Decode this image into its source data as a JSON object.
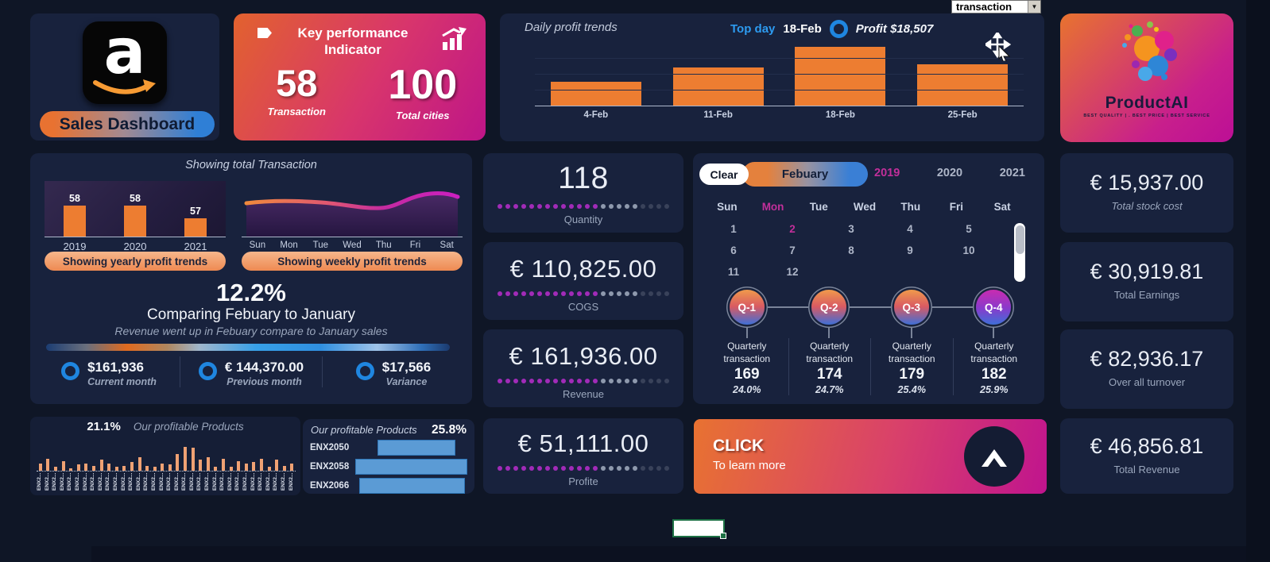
{
  "toolbar": {
    "field_dropdown_value": "transaction",
    "dropdown_arrow": "▼"
  },
  "brand_card": {
    "logo_letter": "a",
    "title": "Sales Dashboard"
  },
  "kpi_card": {
    "title": "Key performance Indicator",
    "metrics": [
      {
        "value": "58",
        "label": "Transaction"
      },
      {
        "value": "100",
        "label": "Total cities"
      }
    ]
  },
  "daily_panel": {
    "title": "Daily profit trends",
    "top_day_label": "Top day",
    "top_day_value": "18-Feb",
    "profit_note": "Profit $18,507"
  },
  "productai_card": {
    "name": "ProductAI",
    "tagline": "BEST QUALITY | . BEST PRICE | BEST SERVICE"
  },
  "transaction_panel": {
    "title": "Showing total Transaction",
    "yearly_button": "Showing yearly profit trends",
    "weekly_button": "Showing weekly profit trends",
    "growth_pct": "12.2%",
    "growth_line1": "Comparing Febuary to January",
    "growth_line2": "Revenue went up in Febuary compare to January sales",
    "stats": [
      {
        "value": "$161,936",
        "label": "Current month"
      },
      {
        "value": "€ 144,370.00",
        "label": "Previous month"
      },
      {
        "value": "$17,566",
        "label": "Variance"
      }
    ]
  },
  "metric_cards": [
    {
      "value": "118",
      "label": "Quantity"
    },
    {
      "value": "€ 110,825.00",
      "label": "COGS"
    },
    {
      "value": "€ 161,936.00",
      "label": "Revenue"
    },
    {
      "value": "€ 51,111.00",
      "label": "Profite"
    }
  ],
  "dot_meter": {
    "active": 13,
    "mid": 5,
    "faint": 4
  },
  "calendar": {
    "clear_button": "Clear",
    "month_button": "Febuary",
    "years": [
      {
        "label": "2019",
        "active": true
      },
      {
        "label": "2020",
        "active": false
      },
      {
        "label": "2021",
        "active": false
      }
    ],
    "day_headers": [
      {
        "label": "Sun",
        "active": false
      },
      {
        "label": "Mon",
        "active": true
      },
      {
        "label": "Tue",
        "active": false
      },
      {
        "label": "Wed",
        "active": false
      },
      {
        "label": "Thu",
        "active": false
      },
      {
        "label": "Fri",
        "active": false
      },
      {
        "label": "Sat",
        "active": false
      }
    ],
    "date_rows": [
      [
        "1",
        "2",
        "3",
        "4",
        "5"
      ],
      [
        "6",
        "7",
        "8",
        "9",
        "10"
      ],
      [
        "11",
        "12"
      ]
    ],
    "highlight_date": "2"
  },
  "quarters": [
    {
      "badge": "Q-1",
      "label": "Quarterly transaction",
      "value": "169",
      "pct": "24.0%",
      "alt": false
    },
    {
      "badge": "Q-2",
      "label": "Quarterly transaction",
      "value": "174",
      "pct": "24.7%",
      "alt": false
    },
    {
      "badge": "Q-3",
      "label": "Quarterly transaction",
      "value": "179",
      "pct": "25.4%",
      "alt": false
    },
    {
      "badge": "Q-4",
      "label": "Quarterly transaction",
      "value": "182",
      "pct": "25.9%",
      "alt": true
    }
  ],
  "total_cards": [
    {
      "value": "€ 15,937.00",
      "label": "Total stock cost",
      "italic": true
    },
    {
      "value": "€ 30,919.81",
      "label": "Total Earnings",
      "italic": false
    },
    {
      "value": "€ 82,936.17",
      "label": "Over all turnover",
      "italic": false
    },
    {
      "value": "€ 46,856.81",
      "label": "Total Revenue",
      "italic": false
    }
  ],
  "profitable_products_panel": {
    "pct": "21.1%",
    "title": "Our profitable Products",
    "bar_label": "ENX2..."
  },
  "top_products_panel": {
    "title": "Our profitable Products",
    "pct": "25.8%"
  },
  "cta": {
    "title": "CLICK",
    "subtitle": "To learn more"
  },
  "colors": {
    "background": "#0F1626",
    "panel": "#18223D",
    "accent_orange": "#ED7D31",
    "accent_magenta": "#C12F9A",
    "accent_blue": "#2D9BF0",
    "bar_blue": "#5B9BD5",
    "gradient_card": [
      "#E2622E",
      "#BE1588"
    ]
  },
  "chart_data": [
    {
      "id": "daily_profit_trends",
      "type": "bar",
      "title": "Daily profit trends",
      "categories": [
        "4-Feb",
        "11-Feb",
        "18-Feb",
        "25-Feb"
      ],
      "values": [
        7500,
        12000,
        18507,
        12900
      ],
      "ylim": [
        0,
        20000
      ],
      "bar_color": "#ED7D31",
      "annotation": "Top day 18-Feb, Profit $18,507",
      "grid": true,
      "legend": "none"
    },
    {
      "id": "yearly_transactions",
      "type": "bar",
      "categories": [
        "2019",
        "2020",
        "2021"
      ],
      "values": [
        58,
        58,
        57
      ],
      "data_labels": [
        "58",
        "58",
        "57"
      ],
      "ylim": [
        55.5,
        60
      ],
      "bar_color": "#ED7D31"
    },
    {
      "id": "weekly_profit_trends",
      "type": "area",
      "categories": [
        "Sun",
        "Mon",
        "Tue",
        "Wed",
        "Thu",
        "Fri",
        "Sat"
      ],
      "values": [
        60,
        61,
        60,
        57,
        55,
        66,
        63
      ],
      "note": "values estimated from smoothed gradient line"
    },
    {
      "id": "profitable_products",
      "type": "bar",
      "headline_pct": "21.1%",
      "label_prefix": "ENX2...",
      "values": [
        3,
        5,
        1.5,
        4,
        1,
        2.5,
        3,
        2,
        4.5,
        3,
        1.5,
        2,
        3.5,
        5.5,
        2,
        1.5,
        3,
        2.5,
        7,
        10,
        9.5,
        4.5,
        5.5,
        1.5,
        5,
        1.5,
        4,
        3,
        3.5,
        5,
        1.5,
        4.5,
        2,
        3
      ],
      "ylim": [
        0,
        10
      ],
      "bar_color": "#EFA173"
    },
    {
      "id": "top_products",
      "type": "bar_horizontal",
      "headline_pct": "25.8%",
      "categories": [
        "ENX2050",
        "ENX2058",
        "ENX2066"
      ],
      "values": [
        98,
        141,
        133
      ],
      "offsets": [
        94,
        66,
        71
      ],
      "unit": "px",
      "bar_color": "#5B9BD5"
    }
  ]
}
